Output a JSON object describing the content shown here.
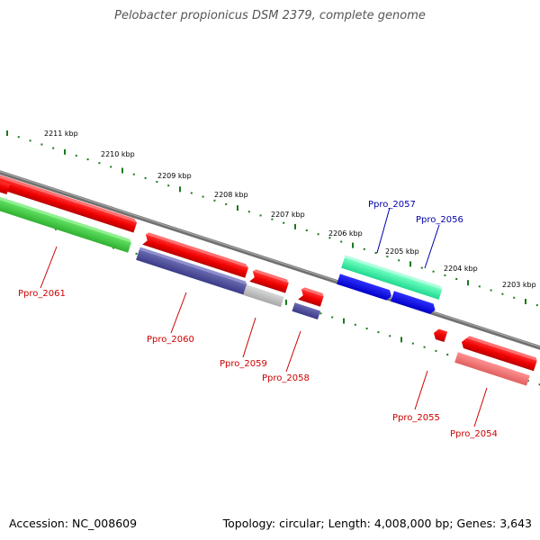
{
  "title": "Pelobacter propionicus DSM 2379, complete genome",
  "footer": {
    "accession": "Accession: NC_008609",
    "summary": "Topology: circular; Length: 4,008,000 bp; Genes: 3,643"
  },
  "colors": {
    "backbone": "#808080",
    "ticks": "#1a7a1a",
    "label_red": "#cc0000",
    "label_blue": "#0000aa"
  },
  "kbp_labels": [
    "2211 kbp",
    "2210 kbp",
    "2209 kbp",
    "2208 kbp",
    "2207 kbp",
    "2206 kbp",
    "2205 kbp",
    "2204 kbp",
    "2203 kbp"
  ],
  "gene_labels": [
    {
      "name": "Ppro_2061",
      "color": "#cc0000"
    },
    {
      "name": "Ppro_2060",
      "color": "#cc0000"
    },
    {
      "name": "Ppro_2059",
      "color": "#cc0000"
    },
    {
      "name": "Ppro_2058",
      "color": "#cc0000"
    },
    {
      "name": "Ppro_2057",
      "color": "#0000aa"
    },
    {
      "name": "Ppro_2056",
      "color": "#0000aa"
    },
    {
      "name": "Ppro_2055",
      "color": "#cc0000"
    },
    {
      "name": "Ppro_2054",
      "color": "#cc0000"
    }
  ]
}
